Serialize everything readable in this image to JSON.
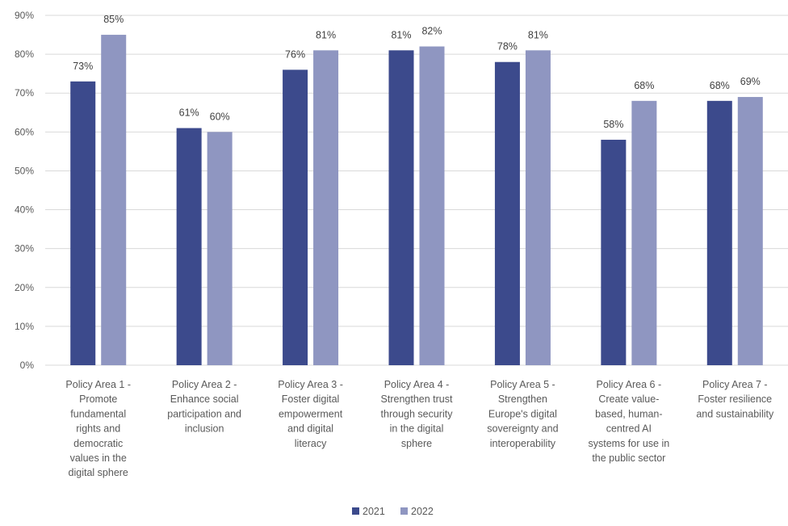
{
  "chart_data": {
    "type": "bar",
    "categories": [
      [
        "Policy Area 1 -",
        "Promote",
        "fundamental",
        "rights and",
        "democratic",
        "values in the",
        "digital sphere"
      ],
      [
        "Policy Area 2 -",
        "Enhance social",
        "participation and",
        "inclusion"
      ],
      [
        "Policy Area 3 -",
        "Foster digital",
        "empowerment",
        "and digital",
        "literacy"
      ],
      [
        "Policy Area 4 -",
        "Strengthen trust",
        "through security",
        "in the digital",
        "sphere"
      ],
      [
        "Policy Area 5 -",
        "Strengthen",
        "Europe's digital",
        "sovereignty and",
        "interoperability"
      ],
      [
        "Policy Area 6 -",
        "Create value-",
        "based, human-",
        "centred AI",
        "systems for use in",
        "the public sector"
      ],
      [
        "Policy Area 7 -",
        "Foster resilience",
        "and sustainability"
      ]
    ],
    "series": [
      {
        "name": "2021",
        "color": "#3c4a8c",
        "values": [
          73,
          61,
          76,
          81,
          78,
          58,
          68
        ]
      },
      {
        "name": "2022",
        "color": "#8f96c1",
        "values": [
          85,
          60,
          81,
          82,
          81,
          68,
          69
        ]
      }
    ],
    "value_suffix": "%",
    "ylim": [
      0,
      90
    ],
    "yticks": [
      0,
      10,
      20,
      30,
      40,
      50,
      60,
      70,
      80,
      90
    ],
    "grid": true,
    "gridline_color": "#d9d9d9",
    "legend_position": "bottom-center"
  }
}
